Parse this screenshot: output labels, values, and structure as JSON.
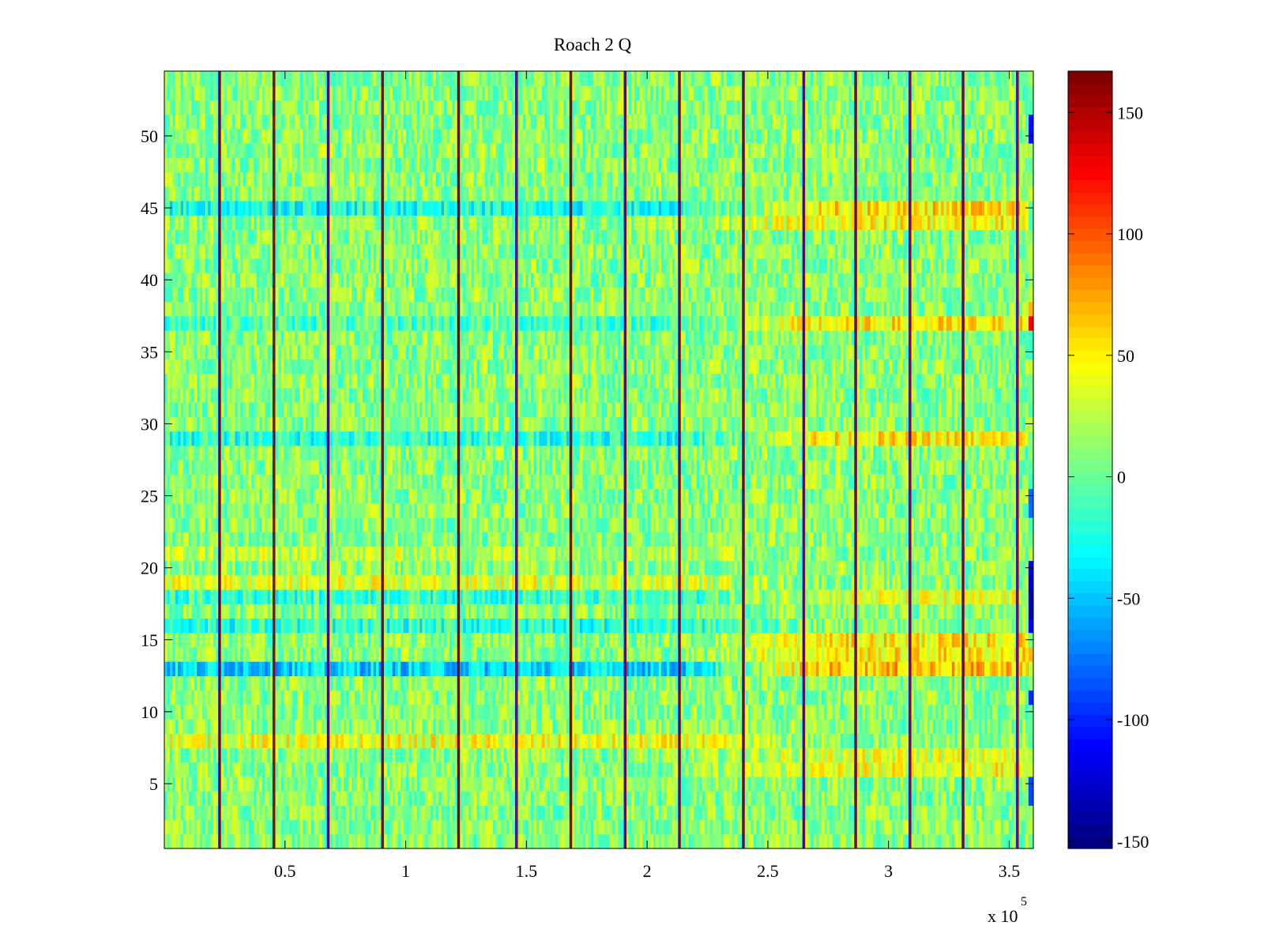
{
  "chart_data": {
    "type": "heatmap",
    "title": "Roach 2 Q",
    "xlabel": "",
    "ylabel": "",
    "x_exponent_label": "x 10",
    "x_exponent_power": "5",
    "xlim": [
      0,
      360000
    ],
    "ylim": [
      0.5,
      54.5
    ],
    "x_ticks": [
      50000,
      100000,
      150000,
      200000,
      250000,
      300000,
      350000
    ],
    "x_tick_labels": [
      "0.5",
      "1",
      "1.5",
      "2",
      "2.5",
      "3",
      "3.5"
    ],
    "y_ticks": [
      5,
      10,
      15,
      20,
      25,
      30,
      35,
      40,
      45,
      50
    ],
    "y_tick_labels": [
      "5",
      "10",
      "15",
      "20",
      "25",
      "30",
      "35",
      "40",
      "45",
      "50"
    ],
    "colorbar": {
      "colormap": "jet",
      "clim": [
        -153,
        167
      ],
      "ticks": [
        150,
        100,
        50,
        0,
        -50,
        -100,
        -150
      ],
      "tick_labels": [
        "150",
        "100",
        "50",
        "0",
        "-50",
        "-100",
        "-150"
      ]
    },
    "grid": false,
    "n_rows": 54,
    "spike_columns_x": [
      23000,
      45500,
      68000,
      90500,
      122000,
      146000,
      168500,
      191000,
      213500,
      240000,
      265000,
      286500,
      309000,
      331000,
      353500
    ],
    "row_profile": {
      "description_rows": [
        1,
        54
      ],
      "baseline": 10,
      "row_offsets_left": {
        "13": -55,
        "16": -30,
        "18": -25,
        "29": -30,
        "37": -20,
        "45": -35,
        "8": 30,
        "19": 25,
        "21": 15
      },
      "row_offsets_right": {
        "13": 55,
        "14": 40,
        "15": 40,
        "29": 40,
        "37": 40,
        "45": 45,
        "44": 35,
        "6": 30,
        "7": 25,
        "18": 25
      }
    },
    "edge_column": {
      "x": 358000,
      "values_by_row": {
        "51": -110,
        "50": -110,
        "37": 130,
        "38": 70,
        "24": -80,
        "25": -80,
        "20": -120,
        "19": -130,
        "18": -140,
        "17": -140,
        "16": -120,
        "14": 70,
        "11": -100,
        "4": -90,
        "5": -90
      }
    }
  }
}
